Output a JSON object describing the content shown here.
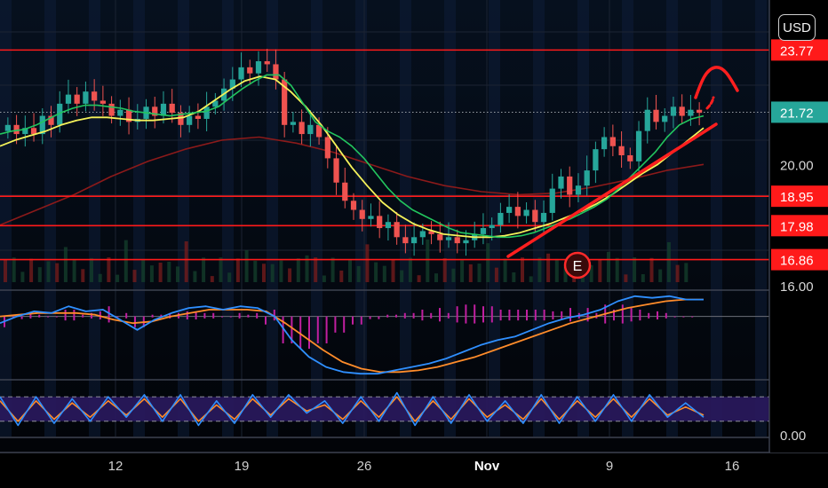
{
  "toolbar": {
    "currency_label": "USD"
  },
  "price_axis": {
    "plain_ticks": [
      {
        "value": 20.0,
        "label": "20.00"
      },
      {
        "value": 16.0,
        "label": "16.00"
      }
    ],
    "tags": [
      {
        "value": 23.77,
        "label": "23.77",
        "color": "#ff1a1a",
        "text": "light"
      },
      {
        "value": 21.72,
        "label": "21.72",
        "color": "#26a69a",
        "text": "light"
      },
      {
        "value": 18.95,
        "label": "18.95",
        "color": "#ff1a1a",
        "text": "light"
      },
      {
        "value": 17.98,
        "label": "17.98",
        "color": "#ff1a1a",
        "text": "light"
      },
      {
        "value": 16.86,
        "label": "16.86",
        "color": "#ff1a1a",
        "text": "light"
      }
    ]
  },
  "stoch_axis": {
    "label": "0.00"
  },
  "time_axis": {
    "ticks": [
      {
        "label": "12",
        "bold": false
      },
      {
        "label": "19",
        "bold": false
      },
      {
        "label": "26",
        "bold": false
      },
      {
        "label": "Nov",
        "bold": true
      },
      {
        "label": "9",
        "bold": false
      },
      {
        "label": "16",
        "bold": false
      }
    ]
  },
  "annotations": {
    "earnings_marker": "E"
  },
  "colors": {
    "up": "#26a69a",
    "down": "#ef5350",
    "ema_short": "#22c55e",
    "ema_long": "#f5f25a",
    "sma_long": "#8b1a1a",
    "level_line": "#ff1a1a",
    "macd": "#2f8fff",
    "signal": "#ff8c2a",
    "histogram": "#c01fa0",
    "stoch_band": "#2a1a5e"
  },
  "chart_data": [
    {
      "type": "candlestick",
      "title": "",
      "ylim": [
        16,
        24.6
      ],
      "x_range": [
        "Oct 6",
        "Nov 17"
      ],
      "levels": [
        23.77,
        18.95,
        17.98,
        16.86
      ],
      "last_price": 21.72,
      "grid": true,
      "series": [
        {
          "name": "",
          "kind": "close",
          "values": [
            21.3,
            21.0,
            21.2,
            21.0,
            21.6,
            21.3,
            22.0,
            22.3,
            22.0,
            22.4,
            22.1,
            22.0,
            21.6,
            21.8,
            21.4,
            21.5,
            21.9,
            21.6,
            22.0,
            21.7,
            21.3,
            21.6,
            21.5,
            21.9,
            22.1,
            22.5,
            22.8,
            23.2,
            23.0,
            23.4,
            23.3,
            22.8,
            21.3,
            21.4,
            21.0,
            21.3,
            20.9,
            20.2,
            19.4,
            18.8,
            18.5,
            18.2,
            18.3,
            17.9,
            18.1,
            17.6,
            17.4,
            17.6,
            17.8,
            17.7,
            17.5,
            17.6,
            17.4,
            17.5,
            17.7,
            17.9,
            18.0,
            18.4,
            18.6,
            18.3,
            18.5,
            18.1,
            18.4,
            19.2,
            19.6,
            19.0,
            19.3,
            19.8,
            20.5,
            20.9,
            20.6,
            20.3,
            20.1,
            21.1,
            21.8,
            21.4,
            21.6,
            21.9,
            21.6,
            21.8,
            21.7
          ]
        },
        {
          "name": "",
          "kind": "ema_short",
          "values": [
            21.0,
            21.1,
            21.15,
            21.3,
            21.5,
            21.7,
            21.85,
            21.95,
            21.95,
            21.9,
            21.85,
            21.75,
            21.7,
            21.65,
            21.6,
            21.65,
            21.7,
            21.75,
            21.9,
            22.2,
            22.5,
            22.75,
            22.95,
            22.95,
            22.6,
            22.0,
            21.4,
            21.1,
            20.9,
            20.6,
            20.2,
            19.7,
            19.2,
            18.8,
            18.5,
            18.3,
            18.1,
            17.9,
            17.75,
            17.7,
            17.65,
            17.6,
            17.6,
            17.65,
            17.75,
            17.9,
            18.05,
            18.2,
            18.4,
            18.6,
            18.85,
            19.2,
            19.6,
            20.0,
            20.4,
            20.9,
            21.3,
            21.5,
            21.6
          ]
        },
        {
          "name": "",
          "kind": "ema_long",
          "values": [
            20.6,
            20.8,
            20.95,
            21.1,
            21.3,
            21.45,
            21.55,
            21.55,
            21.5,
            21.45,
            21.45,
            21.5,
            21.55,
            21.75,
            22.1,
            22.45,
            22.75,
            22.9,
            22.8,
            22.4,
            21.9,
            21.3,
            20.6,
            19.9,
            19.3,
            18.75,
            18.35,
            18.05,
            17.85,
            17.7,
            17.65,
            17.6,
            17.6,
            17.65,
            17.75,
            17.9,
            18.05,
            18.25,
            18.45,
            18.7,
            19.0,
            19.35,
            19.7,
            20.0,
            20.4,
            20.8,
            21.2
          ]
        },
        {
          "name": "",
          "kind": "sma_long",
          "values": [
            18.0,
            18.5,
            19.0,
            19.6,
            20.1,
            20.5,
            20.8,
            20.9,
            20.7,
            20.4,
            20.0,
            19.6,
            19.3,
            19.1,
            19.0,
            19.05,
            19.25,
            19.5,
            19.8,
            20.0
          ]
        }
      ]
    },
    {
      "type": "line",
      "title": "",
      "series": [
        {
          "name": "",
          "kind": "macd",
          "values": [
            -0.2,
            0.0,
            0.15,
            0.1,
            0.3,
            0.15,
            0.2,
            -0.1,
            -0.4,
            -0.1,
            0.1,
            0.25,
            0.3,
            0.2,
            0.3,
            0.25,
            0.0,
            -0.7,
            -1.2,
            -1.5,
            -1.65,
            -1.7,
            -1.7,
            -1.6,
            -1.5,
            -1.4,
            -1.25,
            -1.05,
            -0.85,
            -0.7,
            -0.6,
            -0.4,
            -0.2,
            -0.05,
            0.05,
            0.2,
            0.45,
            0.6,
            0.55,
            0.6,
            0.5,
            0.5
          ]
        },
        {
          "name": "",
          "kind": "signal",
          "values": [
            0.0,
            0.05,
            0.1,
            0.1,
            0.1,
            0.05,
            -0.1,
            -0.2,
            -0.15,
            0.0,
            0.1,
            0.2,
            0.2,
            0.2,
            0.15,
            -0.2,
            -0.6,
            -1.0,
            -1.35,
            -1.55,
            -1.65,
            -1.65,
            -1.6,
            -1.5,
            -1.35,
            -1.2,
            -1.0,
            -0.8,
            -0.6,
            -0.4,
            -0.2,
            -0.05,
            0.1,
            0.25,
            0.35,
            0.45,
            0.5,
            0.5
          ]
        }
      ]
    },
    {
      "type": "line",
      "title": "",
      "ylim": [
        0,
        100
      ],
      "series": [
        {
          "name": "",
          "kind": "stoch_k",
          "values": [
            80,
            10,
            80,
            15,
            75,
            20,
            80,
            30,
            85,
            20,
            85,
            10,
            70,
            15,
            85,
            30,
            85,
            40,
            70,
            15,
            80,
            20,
            90,
            10,
            80,
            15,
            85,
            20,
            70,
            15,
            85,
            15,
            80,
            20,
            85,
            20,
            85,
            30,
            65,
            30
          ]
        },
        {
          "name": "",
          "kind": "stoch_d",
          "values": [
            70,
            20,
            70,
            25,
            65,
            30,
            70,
            35,
            75,
            30,
            75,
            20,
            60,
            25,
            75,
            35,
            75,
            45,
            60,
            25,
            70,
            30,
            80,
            20,
            70,
            25,
            75,
            30,
            60,
            25,
            75,
            25,
            70,
            30,
            75,
            30,
            75,
            35,
            55,
            35
          ]
        }
      ]
    }
  ]
}
